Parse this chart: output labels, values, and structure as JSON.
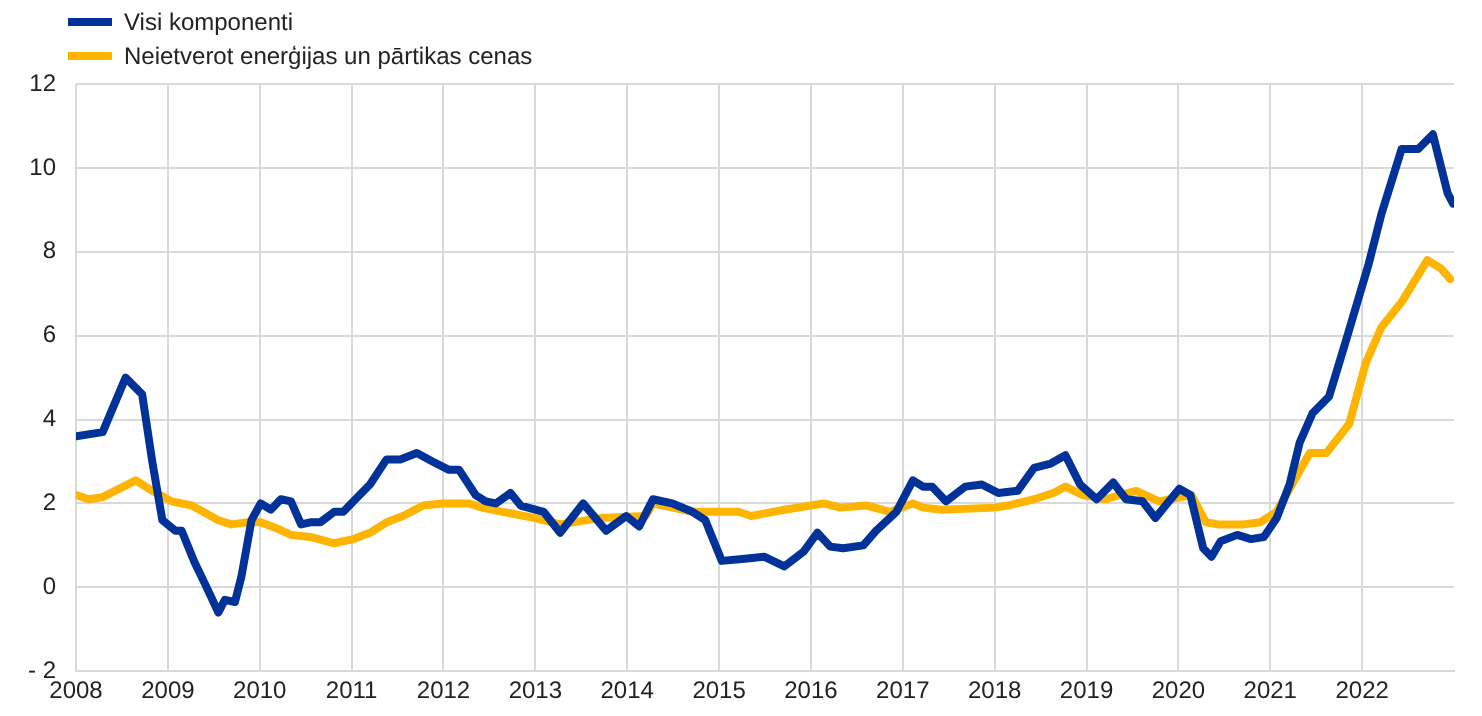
{
  "chart_data": {
    "type": "line",
    "legend": "top left",
    "grid": true,
    "line_style": "solid",
    "marker": "none",
    "xlim": [
      2008,
      2023
    ],
    "xticks": [
      2008,
      2009,
      2010,
      2011,
      2012,
      2013,
      2014,
      2015,
      2016,
      2017,
      2018,
      2019,
      2020,
      2021,
      2022
    ],
    "ylim": [
      -2,
      12
    ],
    "yticks": [
      -2,
      0,
      2,
      4,
      6,
      8,
      10,
      12
    ],
    "series": [
      {
        "name": "Visi komponenti",
        "color": "#003299",
        "x": [
          2008.0,
          2008.29,
          2008.54,
          2008.72,
          2008.83,
          2008.94,
          2009.08,
          2009.15,
          2009.29,
          2009.4,
          2009.55,
          2009.62,
          2009.73,
          2009.8,
          2009.91,
          2010.01,
          2010.12,
          2010.23,
          2010.34,
          2010.45,
          2010.55,
          2010.66,
          2010.81,
          2010.91,
          2011.02,
          2011.2,
          2011.38,
          2011.53,
          2011.71,
          2011.88,
          2012.06,
          2012.17,
          2012.35,
          2012.46,
          2012.57,
          2012.73,
          2012.84,
          2013.09,
          2013.27,
          2013.52,
          2013.77,
          2013.99,
          2014.13,
          2014.28,
          2014.49,
          2014.71,
          2014.85,
          2015.03,
          2015.28,
          2015.49,
          2015.71,
          2015.92,
          2016.07,
          2016.21,
          2016.35,
          2016.57,
          2016.71,
          2016.93,
          2017.11,
          2017.22,
          2017.32,
          2017.47,
          2017.68,
          2017.86,
          2018.04,
          2018.25,
          2018.43,
          2018.61,
          2018.77,
          2018.93,
          2019.11,
          2019.29,
          2019.43,
          2019.61,
          2019.75,
          2019.86,
          2020.01,
          2020.13,
          2020.27,
          2020.36,
          2020.46,
          2020.64,
          2020.79,
          2020.93,
          2021.07,
          2021.21,
          2021.32,
          2021.46,
          2021.64,
          2021.82,
          2022.07,
          2022.21,
          2022.43,
          2022.61,
          2022.77,
          2022.93,
          2022.99
        ],
        "values": [
          3.6,
          3.7,
          5.0,
          4.6,
          3.0,
          1.6,
          1.35,
          1.35,
          0.6,
          0.1,
          -0.6,
          -0.3,
          -0.35,
          0.25,
          1.6,
          2.0,
          1.85,
          2.1,
          2.05,
          1.5,
          1.55,
          1.55,
          1.8,
          1.8,
          2.05,
          2.45,
          3.05,
          3.05,
          3.2,
          3.0,
          2.8,
          2.8,
          2.2,
          2.05,
          2.0,
          2.25,
          1.95,
          1.8,
          1.3,
          2.0,
          1.35,
          1.7,
          1.45,
          2.1,
          2.0,
          1.8,
          1.6,
          0.63,
          0.68,
          0.73,
          0.5,
          0.85,
          1.3,
          0.97,
          0.93,
          1.0,
          1.35,
          1.8,
          2.55,
          2.4,
          2.4,
          2.05,
          2.4,
          2.45,
          2.25,
          2.3,
          2.85,
          2.95,
          3.15,
          2.45,
          2.1,
          2.5,
          2.1,
          2.05,
          1.65,
          1.95,
          2.35,
          2.2,
          0.93,
          0.73,
          1.1,
          1.25,
          1.15,
          1.2,
          1.65,
          2.45,
          3.45,
          4.15,
          4.55,
          5.85,
          7.7,
          8.9,
          10.45,
          10.45,
          10.8,
          9.4,
          9.15
        ]
      },
      {
        "name": "Neietverot enerģijas un pārtikas cenas",
        "color": "#ffb400",
        "x": [
          2008.0,
          2008.14,
          2008.29,
          2008.65,
          2008.83,
          2009.04,
          2009.26,
          2009.55,
          2009.69,
          2009.87,
          2010.01,
          2010.19,
          2010.34,
          2010.55,
          2010.81,
          2011.02,
          2011.2,
          2011.38,
          2011.56,
          2011.78,
          2011.99,
          2012.28,
          2012.42,
          2012.64,
          2013.0,
          2013.27,
          2013.7,
          2014.2,
          2014.28,
          2014.71,
          2015.21,
          2015.35,
          2015.71,
          2016.14,
          2016.32,
          2016.61,
          2016.86,
          2017.11,
          2017.22,
          2017.43,
          2018.0,
          2018.14,
          2018.43,
          2018.64,
          2018.77,
          2018.96,
          2019.21,
          2019.36,
          2019.54,
          2019.79,
          2020.14,
          2020.3,
          2020.43,
          2020.71,
          2020.89,
          2021.07,
          2021.21,
          2021.43,
          2021.61,
          2021.86,
          2022.04,
          2022.21,
          2022.43,
          2022.71,
          2022.86,
          2022.96
        ],
        "values": [
          2.2,
          2.1,
          2.15,
          2.55,
          2.3,
          2.05,
          1.95,
          1.6,
          1.5,
          1.55,
          1.55,
          1.4,
          1.25,
          1.2,
          1.05,
          1.15,
          1.3,
          1.55,
          1.7,
          1.95,
          2.0,
          2.0,
          1.9,
          1.8,
          1.65,
          1.5,
          1.65,
          1.7,
          2.0,
          1.8,
          1.8,
          1.7,
          1.85,
          2.0,
          1.9,
          1.95,
          1.8,
          2.0,
          1.9,
          1.85,
          1.9,
          1.95,
          2.1,
          2.25,
          2.4,
          2.2,
          2.1,
          2.2,
          2.3,
          2.05,
          2.2,
          1.55,
          1.5,
          1.5,
          1.55,
          1.8,
          2.35,
          3.2,
          3.2,
          3.9,
          5.35,
          6.2,
          6.8,
          7.8,
          7.6,
          7.35
        ]
      }
    ]
  }
}
